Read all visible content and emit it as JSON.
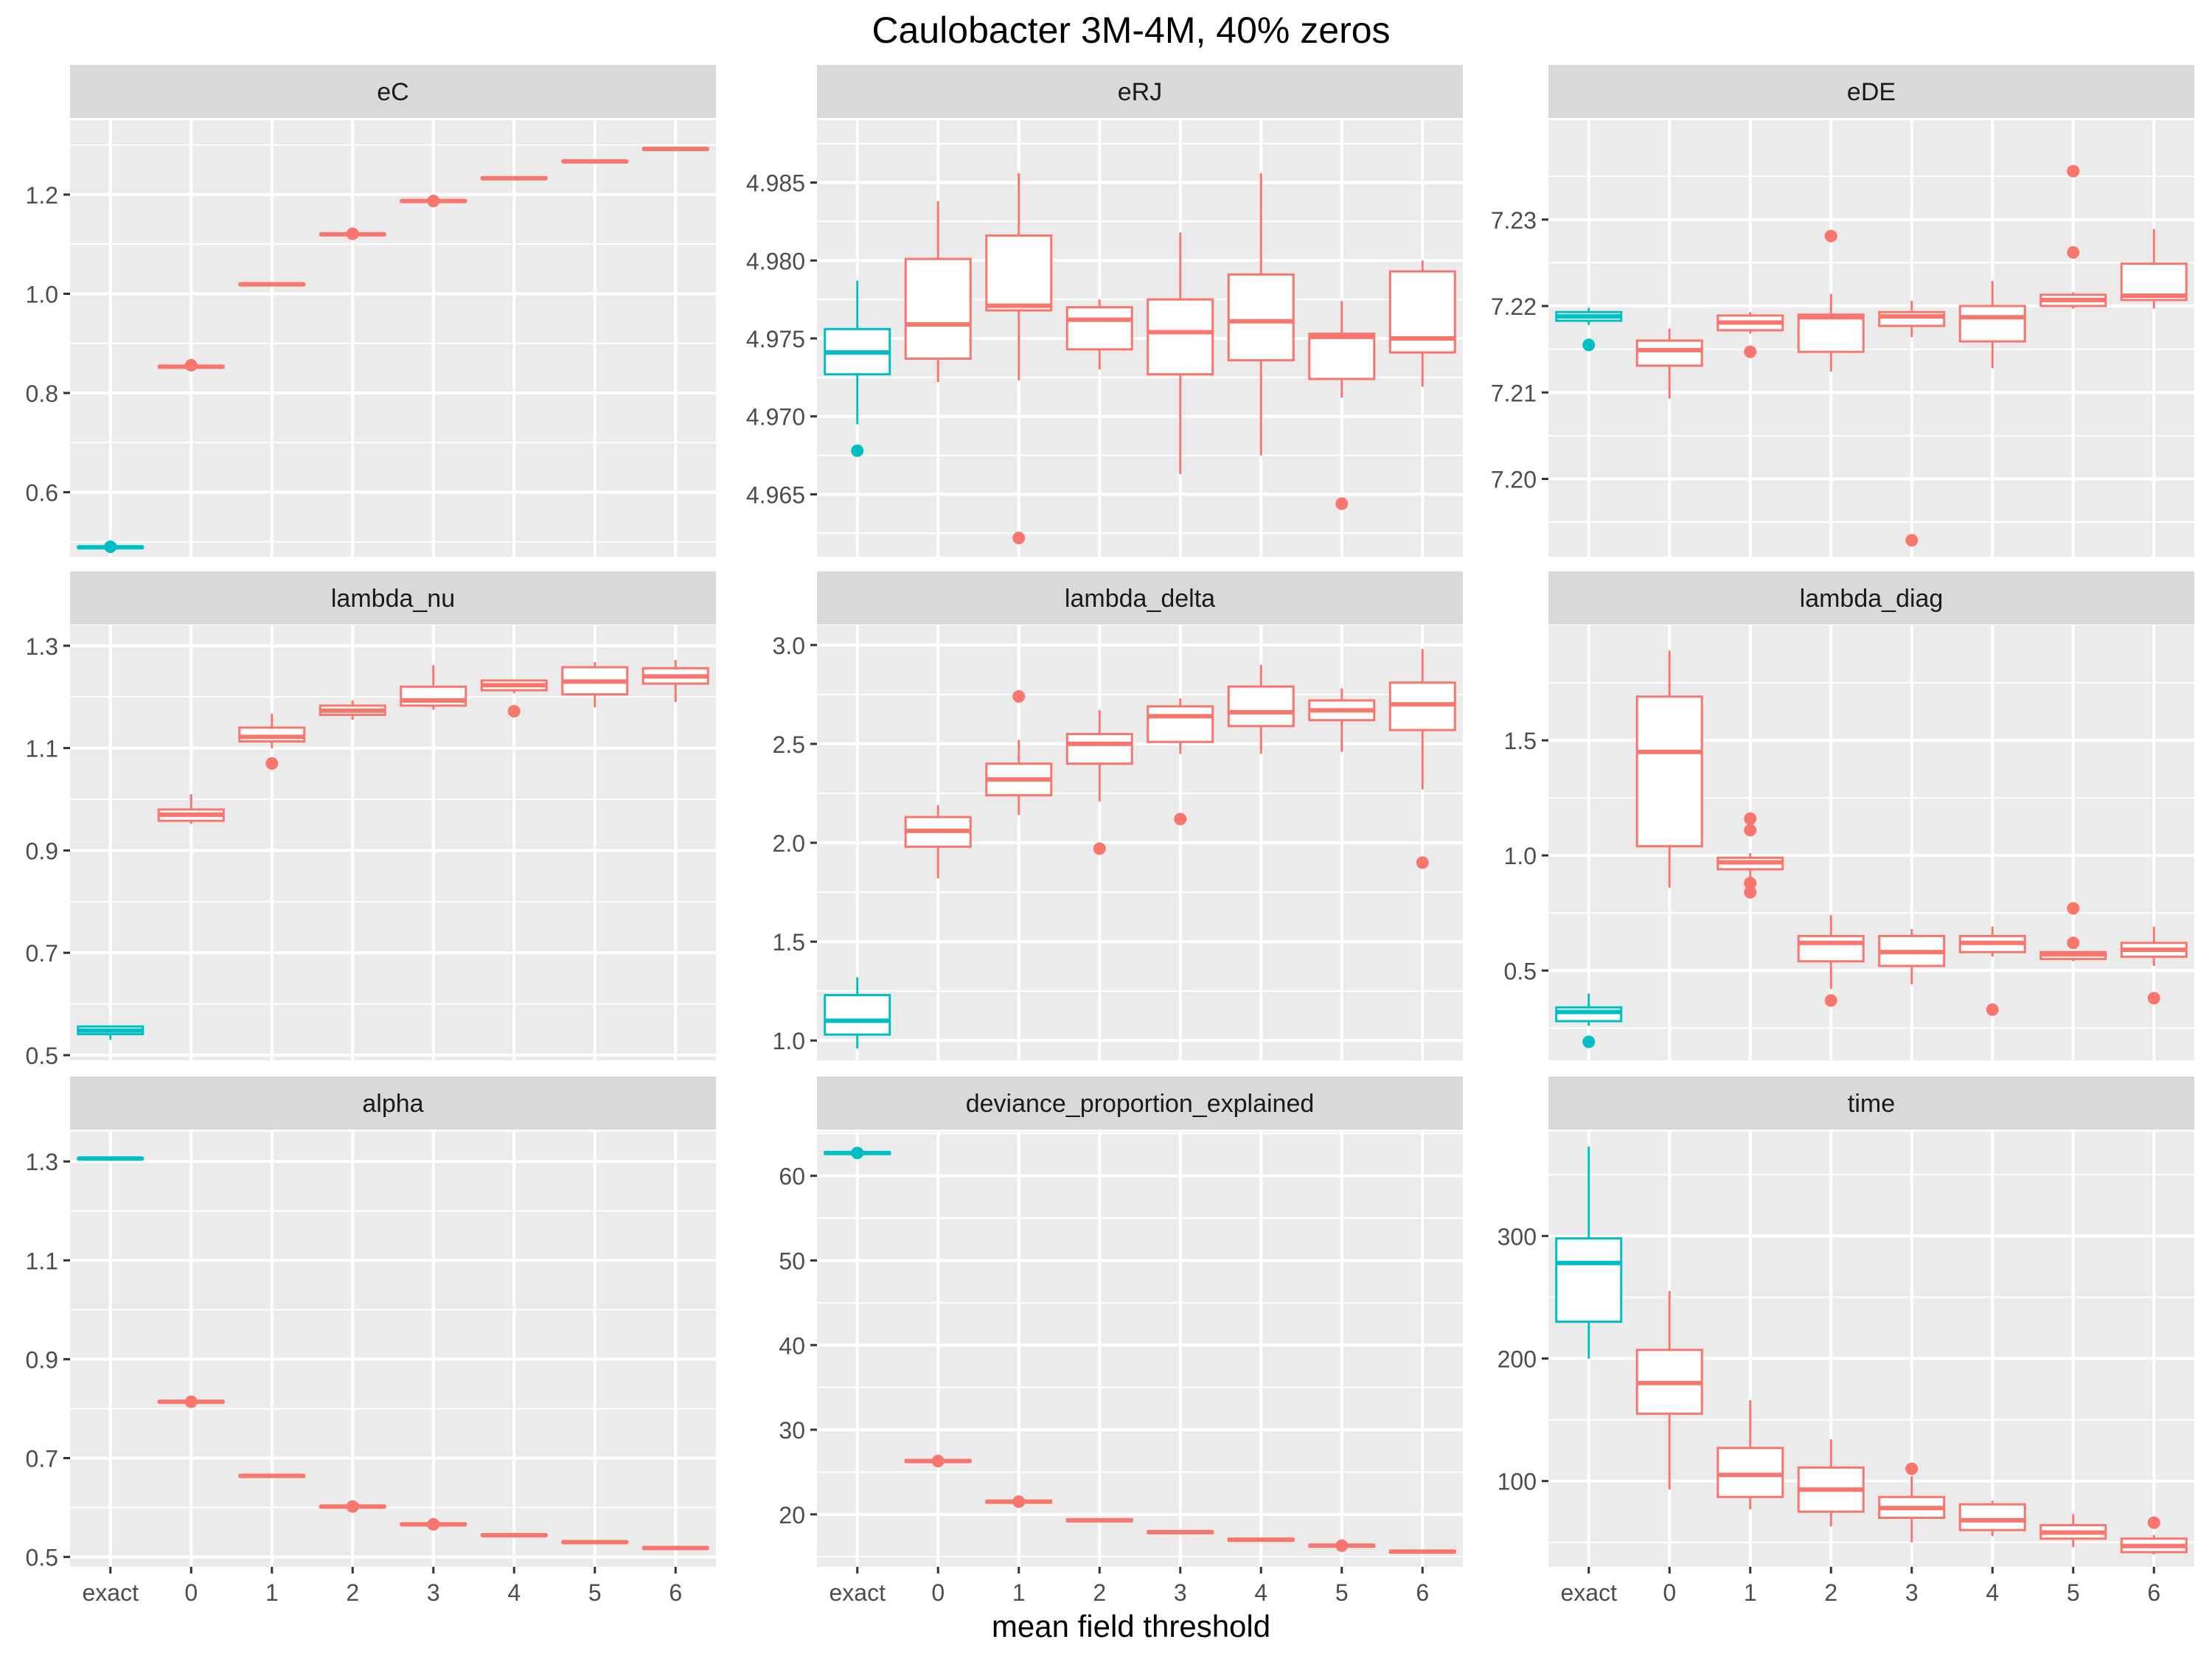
{
  "title": "Caulobacter 3M-4M, 40% zeros",
  "xlabel": "mean field threshold",
  "colors": {
    "exact": "#00BFC4",
    "threshold": "#F8766D",
    "panel_bg": "#EBEBEB",
    "strip_bg": "#D9D9D9",
    "grid": "#FFFFFF",
    "tick_text": "#4D4D4D"
  },
  "chart_data": {
    "type": "boxplot",
    "title": "Caulobacter 3M-4M, 40% zeros",
    "xlabel": "mean field threshold",
    "categories": [
      "exact",
      "0",
      "1",
      "2",
      "3",
      "4",
      "5",
      "6"
    ],
    "category_colors": [
      "exact",
      "threshold",
      "threshold",
      "threshold",
      "threshold",
      "threshold",
      "threshold",
      "threshold"
    ],
    "grid": true,
    "facets": [
      {
        "name": "eC",
        "ylim": [
          0.47,
          1.35
        ],
        "yticks": [
          0.6,
          0.8,
          1.0,
          1.2
        ],
        "ytick_labels": [
          "0.6",
          "0.8",
          "1.0",
          "1.2"
        ],
        "boxes": [
          {
            "min": 0.488,
            "q1": 0.488,
            "median": 0.489,
            "q3": 0.49,
            "max": 0.49,
            "outliers": [
              0.49
            ]
          },
          {
            "min": 0.852,
            "q1": 0.852,
            "median": 0.853,
            "q3": 0.854,
            "max": 0.855,
            "outliers": [
              0.856
            ]
          },
          {
            "min": 1.018,
            "q1": 1.018,
            "median": 1.019,
            "q3": 1.02,
            "max": 1.02,
            "outliers": []
          },
          {
            "min": 1.118,
            "q1": 1.119,
            "median": 1.12,
            "q3": 1.121,
            "max": 1.122,
            "outliers": [
              1.121
            ]
          },
          {
            "min": 1.186,
            "q1": 1.186,
            "median": 1.187,
            "q3": 1.188,
            "max": 1.189,
            "outliers": [
              1.187
            ]
          },
          {
            "min": 1.232,
            "q1": 1.232,
            "median": 1.233,
            "q3": 1.234,
            "max": 1.234,
            "outliers": []
          },
          {
            "min": 1.266,
            "q1": 1.266,
            "median": 1.267,
            "q3": 1.268,
            "max": 1.268,
            "outliers": []
          },
          {
            "min": 1.291,
            "q1": 1.291,
            "median": 1.292,
            "q3": 1.293,
            "max": 1.293,
            "outliers": []
          }
        ]
      },
      {
        "name": "eRJ",
        "ylim": [
          4.961,
          4.989
        ],
        "yticks": [
          4.965,
          4.97,
          4.975,
          4.98,
          4.985
        ],
        "ytick_labels": [
          "4.965",
          "4.970",
          "4.975",
          "4.980",
          "4.985"
        ],
        "boxes": [
          {
            "min": 4.9695,
            "q1": 4.9727,
            "median": 4.9741,
            "q3": 4.9756,
            "max": 4.9787,
            "outliers": [
              4.9678
            ]
          },
          {
            "min": 4.9722,
            "q1": 4.9737,
            "median": 4.9759,
            "q3": 4.9801,
            "max": 4.9838,
            "outliers": []
          },
          {
            "min": 4.9723,
            "q1": 4.9768,
            "median": 4.9771,
            "q3": 4.9816,
            "max": 4.9856,
            "outliers": [
              4.9622
            ]
          },
          {
            "min": 4.973,
            "q1": 4.9743,
            "median": 4.9762,
            "q3": 4.977,
            "max": 4.9775,
            "outliers": []
          },
          {
            "min": 4.9663,
            "q1": 4.9727,
            "median": 4.9754,
            "q3": 4.9775,
            "max": 4.9818,
            "outliers": []
          },
          {
            "min": 4.9675,
            "q1": 4.9736,
            "median": 4.9761,
            "q3": 4.9791,
            "max": 4.9856,
            "outliers": []
          },
          {
            "min": 4.9712,
            "q1": 4.9724,
            "median": 4.9751,
            "q3": 4.9753,
            "max": 4.9774,
            "outliers": [
              4.9644
            ]
          },
          {
            "min": 4.9719,
            "q1": 4.9741,
            "median": 4.975,
            "q3": 4.9793,
            "max": 4.98,
            "outliers": []
          }
        ]
      },
      {
        "name": "eDE",
        "ylim": [
          7.191,
          7.2415
        ],
        "yticks": [
          7.2,
          7.21,
          7.22,
          7.23
        ],
        "ytick_labels": [
          "7.20",
          "7.21",
          "7.22",
          "7.23"
        ],
        "boxes": [
          {
            "min": 7.2178,
            "q1": 7.2183,
            "median": 7.2188,
            "q3": 7.2193,
            "max": 7.2198,
            "outliers": [
              7.2155
            ]
          },
          {
            "min": 7.2093,
            "q1": 7.2131,
            "median": 7.2149,
            "q3": 7.216,
            "max": 7.2174,
            "outliers": []
          },
          {
            "min": 7.2168,
            "q1": 7.2172,
            "median": 7.2181,
            "q3": 7.2189,
            "max": 7.2193,
            "outliers": [
              7.2147
            ]
          },
          {
            "min": 7.2124,
            "q1": 7.2147,
            "median": 7.2187,
            "q3": 7.219,
            "max": 7.2214,
            "outliers": [
              7.2281
            ]
          },
          {
            "min": 7.2164,
            "q1": 7.2177,
            "median": 7.2188,
            "q3": 7.2193,
            "max": 7.2206,
            "outliers": [
              7.1929
            ]
          },
          {
            "min": 7.2128,
            "q1": 7.2159,
            "median": 7.2187,
            "q3": 7.22,
            "max": 7.2229,
            "outliers": []
          },
          {
            "min": 7.2197,
            "q1": 7.22,
            "median": 7.2207,
            "q3": 7.2213,
            "max": 7.2216,
            "outliers": [
              7.2262,
              7.2356
            ]
          },
          {
            "min": 7.2197,
            "q1": 7.2207,
            "median": 7.2212,
            "q3": 7.2249,
            "max": 7.2289,
            "outliers": []
          }
        ]
      },
      {
        "name": "lambda_nu",
        "ylim": [
          0.49,
          1.34
        ],
        "yticks": [
          0.5,
          0.7,
          0.9,
          1.1,
          1.3
        ],
        "ytick_labels": [
          "0.5",
          "0.7",
          "0.9",
          "1.1",
          "1.3"
        ],
        "boxes": [
          {
            "min": 0.53,
            "q1": 0.541,
            "median": 0.548,
            "q3": 0.556,
            "max": 0.558,
            "outliers": []
          },
          {
            "min": 0.952,
            "q1": 0.958,
            "median": 0.97,
            "q3": 0.98,
            "max": 1.01,
            "outliers": []
          },
          {
            "min": 1.1,
            "q1": 1.113,
            "median": 1.122,
            "q3": 1.14,
            "max": 1.167,
            "outliers": [
              1.07
            ]
          },
          {
            "min": 1.155,
            "q1": 1.165,
            "median": 1.173,
            "q3": 1.183,
            "max": 1.193,
            "outliers": []
          },
          {
            "min": 1.175,
            "q1": 1.183,
            "median": 1.193,
            "q3": 1.22,
            "max": 1.262,
            "outliers": []
          },
          {
            "min": 1.207,
            "q1": 1.213,
            "median": 1.223,
            "q3": 1.232,
            "max": 1.234,
            "outliers": [
              1.172
            ]
          },
          {
            "min": 1.18,
            "q1": 1.205,
            "median": 1.23,
            "q3": 1.258,
            "max": 1.268,
            "outliers": []
          },
          {
            "min": 1.19,
            "q1": 1.226,
            "median": 1.24,
            "q3": 1.256,
            "max": 1.272,
            "outliers": []
          }
        ]
      },
      {
        "name": "lambda_delta",
        "ylim": [
          0.9,
          3.1
        ],
        "yticks": [
          1.0,
          1.5,
          2.0,
          2.5,
          3.0
        ],
        "ytick_labels": [
          "1.0",
          "1.5",
          "2.0",
          "2.5",
          "3.0"
        ],
        "boxes": [
          {
            "min": 0.96,
            "q1": 1.03,
            "median": 1.1,
            "q3": 1.23,
            "max": 1.32,
            "outliers": []
          },
          {
            "min": 1.82,
            "q1": 1.98,
            "median": 2.06,
            "q3": 2.13,
            "max": 2.19,
            "outliers": []
          },
          {
            "min": 2.14,
            "q1": 2.24,
            "median": 2.32,
            "q3": 2.4,
            "max": 2.52,
            "outliers": [
              2.74
            ]
          },
          {
            "min": 2.21,
            "q1": 2.4,
            "median": 2.5,
            "q3": 2.55,
            "max": 2.67,
            "outliers": [
              1.97
            ]
          },
          {
            "min": 2.45,
            "q1": 2.51,
            "median": 2.64,
            "q3": 2.69,
            "max": 2.73,
            "outliers": [
              2.12
            ]
          },
          {
            "min": 2.45,
            "q1": 2.59,
            "median": 2.66,
            "q3": 2.79,
            "max": 2.9,
            "outliers": []
          },
          {
            "min": 2.46,
            "q1": 2.62,
            "median": 2.67,
            "q3": 2.72,
            "max": 2.78,
            "outliers": []
          },
          {
            "min": 2.27,
            "q1": 2.57,
            "median": 2.7,
            "q3": 2.81,
            "max": 2.98,
            "outliers": [
              1.9
            ]
          }
        ]
      },
      {
        "name": "lambda_diag",
        "ylim": [
          0.11,
          2.0
        ],
        "yticks": [
          0.5,
          1.0,
          1.5
        ],
        "ytick_labels": [
          "0.5",
          "1.0",
          "1.5"
        ],
        "boxes": [
          {
            "min": 0.26,
            "q1": 0.28,
            "median": 0.32,
            "q3": 0.34,
            "max": 0.4,
            "outliers": [
              0.19
            ]
          },
          {
            "min": 0.86,
            "q1": 1.04,
            "median": 1.45,
            "q3": 1.69,
            "max": 1.89,
            "outliers": []
          },
          {
            "min": 0.9,
            "q1": 0.94,
            "median": 0.97,
            "q3": 0.99,
            "max": 1.01,
            "outliers": [
              0.84,
              0.88,
              1.11,
              1.16
            ]
          },
          {
            "min": 0.42,
            "q1": 0.54,
            "median": 0.62,
            "q3": 0.65,
            "max": 0.74,
            "outliers": [
              0.37
            ]
          },
          {
            "min": 0.44,
            "q1": 0.52,
            "median": 0.58,
            "q3": 0.65,
            "max": 0.68,
            "outliers": []
          },
          {
            "min": 0.56,
            "q1": 0.58,
            "median": 0.62,
            "q3": 0.65,
            "max": 0.69,
            "outliers": [
              0.33
            ]
          },
          {
            "min": 0.54,
            "q1": 0.55,
            "median": 0.57,
            "q3": 0.58,
            "max": 0.58,
            "outliers": [
              0.62,
              0.77
            ]
          },
          {
            "min": 0.52,
            "q1": 0.56,
            "median": 0.59,
            "q3": 0.62,
            "max": 0.69,
            "outliers": [
              0.38
            ]
          }
        ]
      },
      {
        "name": "alpha",
        "ylim": [
          0.48,
          1.36
        ],
        "yticks": [
          0.5,
          0.7,
          0.9,
          1.1,
          1.3
        ],
        "ytick_labels": [
          "0.5",
          "0.7",
          "0.9",
          "1.1",
          "1.3"
        ],
        "boxes": [
          {
            "min": 1.305,
            "q1": 1.305,
            "median": 1.306,
            "q3": 1.307,
            "max": 1.307,
            "outliers": []
          },
          {
            "min": 0.812,
            "q1": 0.813,
            "median": 0.814,
            "q3": 0.815,
            "max": 0.816,
            "outliers": [
              0.814
            ]
          },
          {
            "min": 0.663,
            "q1": 0.663,
            "median": 0.664,
            "q3": 0.665,
            "max": 0.665,
            "outliers": []
          },
          {
            "min": 0.601,
            "q1": 0.601,
            "median": 0.602,
            "q3": 0.603,
            "max": 0.604,
            "outliers": [
              0.602
            ]
          },
          {
            "min": 0.564,
            "q1": 0.565,
            "median": 0.566,
            "q3": 0.567,
            "max": 0.568,
            "outliers": [
              0.566
            ]
          },
          {
            "min": 0.543,
            "q1": 0.543,
            "median": 0.544,
            "q3": 0.545,
            "max": 0.545,
            "outliers": []
          },
          {
            "min": 0.529,
            "q1": 0.529,
            "median": 0.53,
            "q3": 0.531,
            "max": 0.531,
            "outliers": []
          },
          {
            "min": 0.517,
            "q1": 0.517,
            "median": 0.518,
            "q3": 0.519,
            "max": 0.519,
            "outliers": []
          }
        ]
      },
      {
        "name": "deviance_proportion_explained",
        "ylim": [
          13.8,
          65.2
        ],
        "yticks": [
          20,
          30,
          40,
          50,
          60
        ],
        "ytick_labels": [
          "20",
          "30",
          "40",
          "50",
          "60"
        ],
        "boxes": [
          {
            "min": 62.6,
            "q1": 62.6,
            "median": 62.7,
            "q3": 62.8,
            "max": 62.8,
            "outliers": [
              62.7
            ]
          },
          {
            "min": 26.1,
            "q1": 26.2,
            "median": 26.3,
            "q3": 26.4,
            "max": 26.5,
            "outliers": [
              26.3
            ]
          },
          {
            "min": 21.3,
            "q1": 21.4,
            "median": 21.5,
            "q3": 21.6,
            "max": 21.6,
            "outliers": [
              21.5
            ]
          },
          {
            "min": 19.1,
            "q1": 19.2,
            "median": 19.3,
            "q3": 19.4,
            "max": 19.4,
            "outliers": []
          },
          {
            "min": 17.8,
            "q1": 17.8,
            "median": 17.9,
            "q3": 18.0,
            "max": 18.0,
            "outliers": []
          },
          {
            "min": 16.9,
            "q1": 16.9,
            "median": 17.0,
            "q3": 17.1,
            "max": 17.1,
            "outliers": []
          },
          {
            "min": 16.1,
            "q1": 16.2,
            "median": 16.3,
            "q3": 16.4,
            "max": 16.5,
            "outliers": [
              16.3
            ]
          },
          {
            "min": 15.5,
            "q1": 15.5,
            "median": 15.6,
            "q3": 15.7,
            "max": 15.7,
            "outliers": []
          }
        ]
      },
      {
        "name": "time",
        "ylim": [
          30,
          385
        ],
        "yticks": [
          100,
          200,
          300
        ],
        "ytick_labels": [
          "100",
          "200",
          "300"
        ],
        "boxes": [
          {
            "min": 200,
            "q1": 230,
            "median": 278,
            "q3": 298,
            "max": 373,
            "outliers": []
          },
          {
            "min": 93,
            "q1": 155,
            "median": 180,
            "q3": 207,
            "max": 255,
            "outliers": []
          },
          {
            "min": 77,
            "q1": 87,
            "median": 105,
            "q3": 127,
            "max": 166,
            "outliers": []
          },
          {
            "min": 63,
            "q1": 75,
            "median": 93,
            "q3": 111,
            "max": 134,
            "outliers": []
          },
          {
            "min": 50,
            "q1": 70,
            "median": 78,
            "q3": 87,
            "max": 104,
            "outliers": [
              110
            ]
          },
          {
            "min": 55,
            "q1": 60,
            "median": 68,
            "q3": 81,
            "max": 84,
            "outliers": []
          },
          {
            "min": 46,
            "q1": 53,
            "median": 58,
            "q3": 64,
            "max": 73,
            "outliers": []
          },
          {
            "min": 40,
            "q1": 42,
            "median": 47,
            "q3": 53,
            "max": 56,
            "outliers": [
              66
            ]
          }
        ]
      }
    ]
  }
}
